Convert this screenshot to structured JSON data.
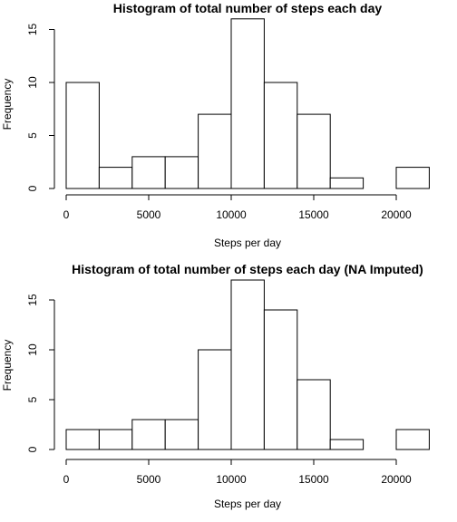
{
  "chart_data": [
    {
      "type": "bar",
      "title": "Histogram of total number of steps each day",
      "xlabel": "Steps per day",
      "ylabel": "Frequency",
      "bins": [
        [
          0,
          2000
        ],
        [
          2000,
          4000
        ],
        [
          4000,
          6000
        ],
        [
          6000,
          8000
        ],
        [
          8000,
          10000
        ],
        [
          10000,
          12000
        ],
        [
          12000,
          14000
        ],
        [
          14000,
          16000
        ],
        [
          16000,
          18000
        ],
        [
          18000,
          20000
        ],
        [
          20000,
          22000
        ]
      ],
      "values": [
        10,
        2,
        3,
        3,
        7,
        16,
        10,
        7,
        1,
        0,
        2
      ],
      "xlim": [
        0,
        22000
      ],
      "ylim": [
        0,
        16
      ],
      "xticks": [
        0,
        5000,
        10000,
        15000,
        20000
      ],
      "yticks": [
        0,
        5,
        10,
        15
      ],
      "grid": false,
      "bar_fill": "#ffffff",
      "bar_stroke": "#000000"
    },
    {
      "type": "bar",
      "title": "Histogram of total number of steps each day (NA Imputed)",
      "xlabel": "Steps per day",
      "ylabel": "Frequency",
      "bins": [
        [
          0,
          2000
        ],
        [
          2000,
          4000
        ],
        [
          4000,
          6000
        ],
        [
          6000,
          8000
        ],
        [
          8000,
          10000
        ],
        [
          10000,
          12000
        ],
        [
          12000,
          14000
        ],
        [
          14000,
          16000
        ],
        [
          16000,
          18000
        ],
        [
          18000,
          20000
        ],
        [
          20000,
          22000
        ]
      ],
      "values": [
        2,
        2,
        3,
        3,
        10,
        17,
        14,
        7,
        1,
        0,
        2
      ],
      "xlim": [
        0,
        22000
      ],
      "ylim": [
        0,
        17
      ],
      "xticks": [
        0,
        5000,
        10000,
        15000,
        20000
      ],
      "yticks": [
        0,
        5,
        10,
        15
      ],
      "grid": false,
      "bar_fill": "#ffffff",
      "bar_stroke": "#000000"
    }
  ]
}
